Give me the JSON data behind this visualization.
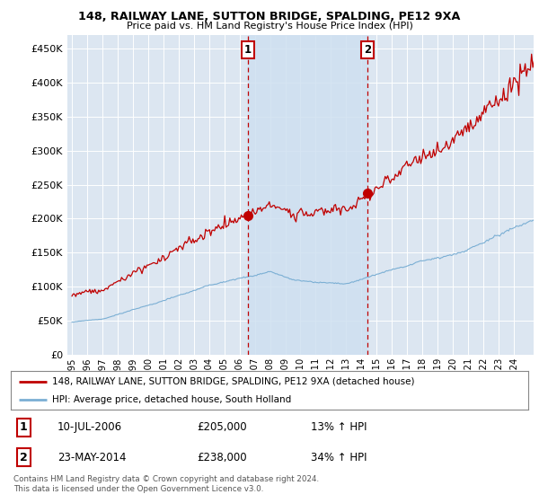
{
  "title": "148, RAILWAY LANE, SUTTON BRIDGE, SPALDING, PE12 9XA",
  "subtitle": "Price paid vs. HM Land Registry's House Price Index (HPI)",
  "legend_line1": "148, RAILWAY LANE, SUTTON BRIDGE, SPALDING, PE12 9XA (detached house)",
  "legend_line2": "HPI: Average price, detached house, South Holland",
  "sale1_date": "10-JUL-2006",
  "sale1_price": 205000,
  "sale1_pct": "13%",
  "sale2_date": "23-MAY-2014",
  "sale2_price": 238000,
  "sale2_pct": "34%",
  "footer1": "Contains HM Land Registry data © Crown copyright and database right 2024.",
  "footer2": "This data is licensed under the Open Government Licence v3.0.",
  "hpi_color": "#7bafd4",
  "price_color": "#c00000",
  "marker_color": "#c00000",
  "shade_color": "#cfe0f0",
  "background_color": "#dce6f1",
  "ylim_min": 0,
  "ylim_max": 470000,
  "xlim_min": 1994.7,
  "xlim_max": 2025.3,
  "sale1_year": 2006.53,
  "sale2_year": 2014.39
}
